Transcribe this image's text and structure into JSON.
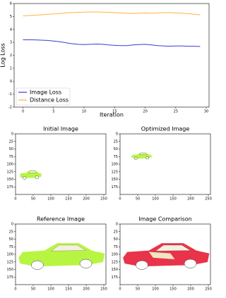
{
  "chart_data": [
    {
      "type": "line",
      "x_label": "Iteration",
      "y_label": "Log Loss",
      "x": [
        0,
        1,
        2,
        3,
        4,
        5,
        6,
        7,
        8,
        9,
        10,
        11,
        12,
        13,
        14,
        15,
        16,
        17,
        18,
        19,
        20,
        21,
        22,
        23,
        24,
        25,
        26,
        27,
        28,
        29
      ],
      "series": [
        {
          "name": "Image Loss",
          "color": "#3b3bd6",
          "values": [
            3.2,
            3.2,
            3.19,
            3.17,
            3.15,
            3.1,
            3.05,
            2.97,
            2.9,
            2.85,
            2.83,
            2.85,
            2.87,
            2.85,
            2.8,
            2.77,
            2.75,
            2.75,
            2.8,
            2.83,
            2.85,
            2.8,
            2.75,
            2.72,
            2.7,
            2.72,
            2.72,
            2.7,
            2.7,
            2.68
          ]
        },
        {
          "name": "Distance Loss",
          "color": "#ffb23f",
          "values": [
            5.05,
            5.07,
            5.1,
            5.13,
            5.17,
            5.2,
            5.23,
            5.27,
            5.3,
            5.32,
            5.33,
            5.35,
            5.35,
            5.33,
            5.32,
            5.3,
            5.27,
            5.25,
            5.23,
            5.25,
            5.27,
            5.25,
            5.27,
            5.3,
            5.3,
            5.27,
            5.25,
            5.22,
            5.18,
            5.12
          ]
        }
      ],
      "xlim": [
        -1.45,
        30.45
      ],
      "xticks": [
        0,
        5,
        10,
        15,
        20,
        25,
        30
      ],
      "ylim": [
        -2,
        6
      ],
      "yticks": [
        -2,
        -1,
        0,
        1,
        2,
        3,
        4,
        5,
        6
      ],
      "legend": "lower left"
    },
    {
      "type": "image",
      "title": "Initial Image",
      "color": "#b8f542",
      "xlim": [
        0,
        256
      ],
      "ylim": [
        200,
        0
      ],
      "xticks": [
        0,
        50,
        100,
        150,
        200,
        250
      ],
      "yticks": [
        0,
        25,
        50,
        75,
        100,
        125,
        150,
        175
      ]
    },
    {
      "type": "image",
      "title": "Optimized Image",
      "color": "#b8f542",
      "xlim": [
        0,
        256
      ],
      "ylim": [
        200,
        0
      ],
      "xticks": [
        0,
        50,
        100,
        150,
        200,
        250
      ],
      "yticks": [
        0,
        25,
        50,
        75,
        100,
        125,
        150,
        175
      ]
    },
    {
      "type": "image",
      "title": "Reference Image",
      "color": "#b8f542",
      "xlim": [
        0,
        256
      ],
      "ylim": [
        200,
        0
      ],
      "xticks": [
        0,
        50,
        100,
        150,
        200,
        250
      ],
      "yticks": [
        0,
        25,
        50,
        75,
        100,
        125,
        150,
        175
      ]
    },
    {
      "type": "image",
      "title": "Image Comparison",
      "color": "#e8334a",
      "xlim": [
        0,
        256
      ],
      "ylim": [
        200,
        0
      ],
      "xticks": [
        0,
        50,
        100,
        150,
        200,
        250
      ],
      "yticks": [
        0,
        25,
        50,
        75,
        100,
        125,
        150,
        175
      ]
    }
  ]
}
